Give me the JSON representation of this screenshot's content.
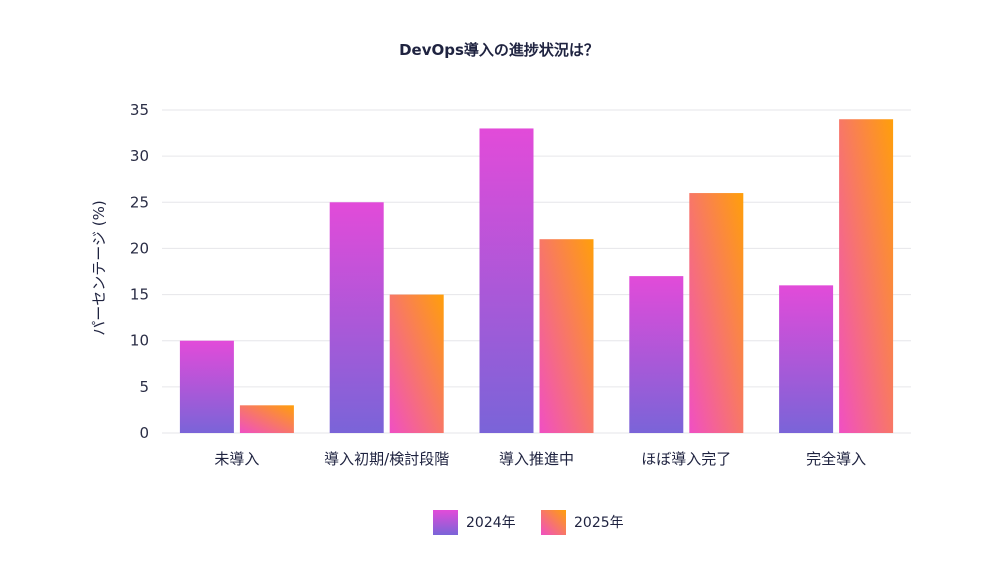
{
  "chart_data": {
    "type": "bar",
    "title": "DevOps導入の進捗状況は？",
    "xlabel": "",
    "ylabel": "パーセンテージ (%)",
    "ylim": [
      0,
      35
    ],
    "yticks": [
      0,
      5,
      10,
      15,
      20,
      25,
      30,
      35
    ],
    "grid": true,
    "legend_position": "bottom-center",
    "categories": [
      "未導入",
      "導入初期/検討段階",
      "導入推進中",
      "ほぼ導入完了",
      "完全導入"
    ],
    "series": [
      {
        "name": "2024年",
        "values": [
          10,
          25,
          33,
          17,
          16
        ],
        "color_top": "#e24bd9",
        "color_bottom": "#7a64d8"
      },
      {
        "name": "2025年",
        "values": [
          3,
          15,
          21,
          26,
          34
        ],
        "color_top": "#ff9f0a",
        "color_bottom": "#f04fc4"
      }
    ]
  }
}
